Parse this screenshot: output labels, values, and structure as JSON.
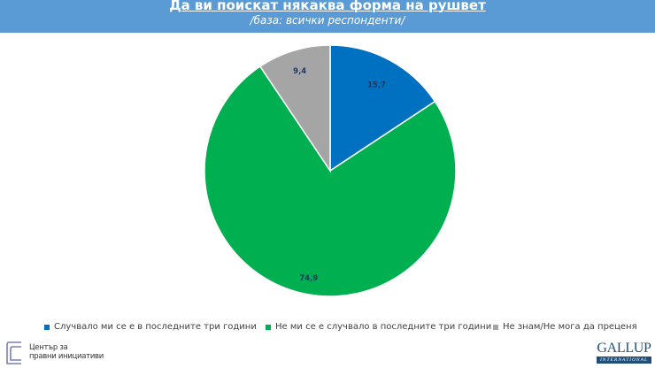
{
  "header": {
    "title": "Да ви поискат някаква форма на рушвет",
    "subtitle": "/база: всички респонденти/",
    "background_color": "#5b9bd5"
  },
  "chart_data": {
    "type": "pie",
    "title": "Да ви поискат някаква форма на рушвет",
    "subtitle": "/база: всички респонденти/",
    "categories": [
      "Случвало ми се е в последните три години",
      "Не ми се е случвало в последните три години",
      "Не знам/Не мога да преценя"
    ],
    "values": [
      15.7,
      74.9,
      9.4
    ],
    "value_labels": [
      "15,7",
      "74,9",
      "9,4"
    ],
    "colors": [
      "#0070c0",
      "#00b050",
      "#a5a5a5"
    ],
    "start_angle_deg": 0,
    "direction": "clockwise",
    "legend_position": "bottom"
  },
  "legend": {
    "items": [
      {
        "label": "Случвало ми се е в последните три години",
        "color": "#0070c0"
      },
      {
        "label": "Не ми се е случвало в последните три години",
        "color": "#00b050"
      },
      {
        "label": "Не знам/Не мога да преценя",
        "color": "#a5a5a5"
      }
    ]
  },
  "footer": {
    "left_logo_line1": "Център за",
    "left_logo_line2": "правни инициативи",
    "right_logo_word": "GALLUP",
    "right_logo_sub": "INTERNATIONAL"
  }
}
